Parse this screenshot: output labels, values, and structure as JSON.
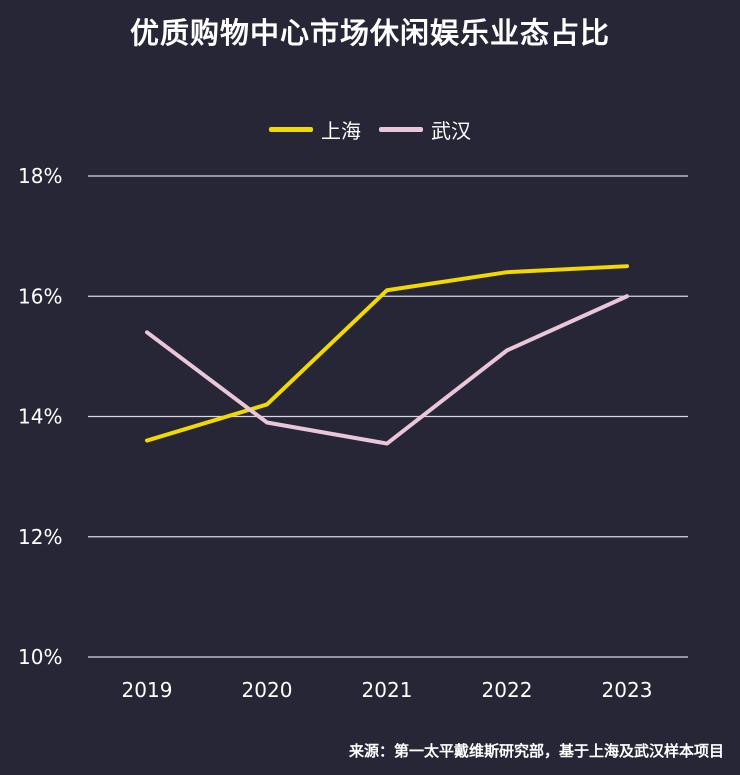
{
  "chart_data": {
    "type": "line",
    "title": "优质购物中心市场休闲娱乐业态占比",
    "categories": [
      "2019",
      "2020",
      "2021",
      "2022",
      "2023"
    ],
    "series": [
      {
        "name": "上海",
        "color": "#f2d900",
        "values": [
          13.6,
          14.2,
          16.1,
          16.4,
          16.5
        ]
      },
      {
        "name": "武汉",
        "color": "#e9c6d8",
        "values": [
          15.4,
          13.9,
          13.55,
          15.1,
          16.0
        ]
      }
    ],
    "y_ticks": [
      10,
      12,
      14,
      16,
      18
    ],
    "y_tick_labels": [
      "10%",
      "12%",
      "14%",
      "16%",
      "18%"
    ],
    "ylim": [
      10,
      18
    ],
    "grid": true,
    "legend_position": "top-center",
    "xlabel": "",
    "ylabel": "",
    "source": "来源：第一太平戴维斯研究部，基于上海及武汉样本项目"
  }
}
